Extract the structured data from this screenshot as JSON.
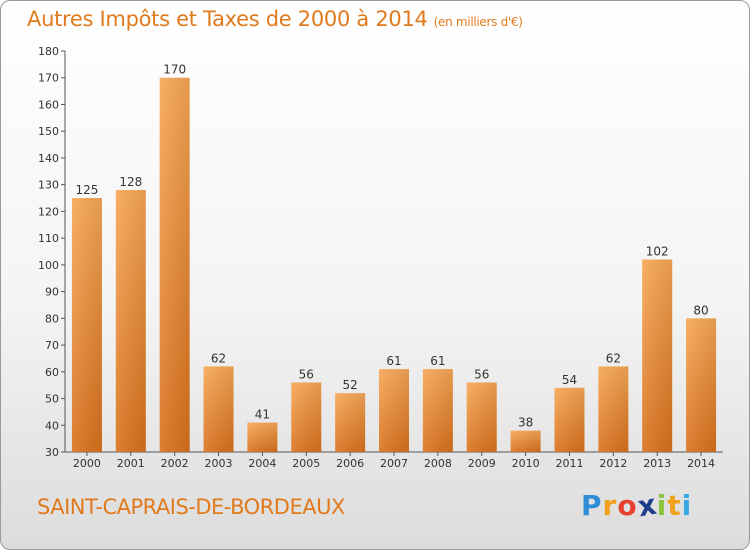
{
  "header": {
    "title": "Autres Impôts et Taxes de 2000 à 2014",
    "unit": "(en milliers d'€)"
  },
  "footer": {
    "commune": "SAINT-CAPRAIS-DE-BORDEAUX",
    "logo_letters": [
      "P",
      "r",
      "o",
      "x",
      "i",
      "t",
      "i"
    ],
    "logo_colors": [
      "#2e8fd8",
      "#f2a11c",
      "#e8402e",
      "#1e3f8c",
      "#8cc43c",
      "#f2a11c",
      "#3aa8e0"
    ]
  },
  "chart_data": {
    "type": "bar",
    "title": "Autres Impôts et Taxes de 2000 à 2014",
    "xlabel": "",
    "ylabel": "",
    "categories": [
      "2000",
      "2001",
      "2002",
      "2003",
      "2004",
      "2005",
      "2006",
      "2007",
      "2008",
      "2009",
      "2010",
      "2011",
      "2012",
      "2013",
      "2014"
    ],
    "values": [
      125,
      128,
      170,
      62,
      41,
      56,
      52,
      61,
      61,
      56,
      38,
      54,
      62,
      102,
      80
    ],
    "ylim": [
      30,
      180
    ],
    "yticks": [
      30,
      40,
      50,
      60,
      70,
      80,
      90,
      100,
      110,
      120,
      130,
      140,
      150,
      160,
      170,
      180
    ],
    "grid": false,
    "bar_color": "#f39c3c"
  }
}
